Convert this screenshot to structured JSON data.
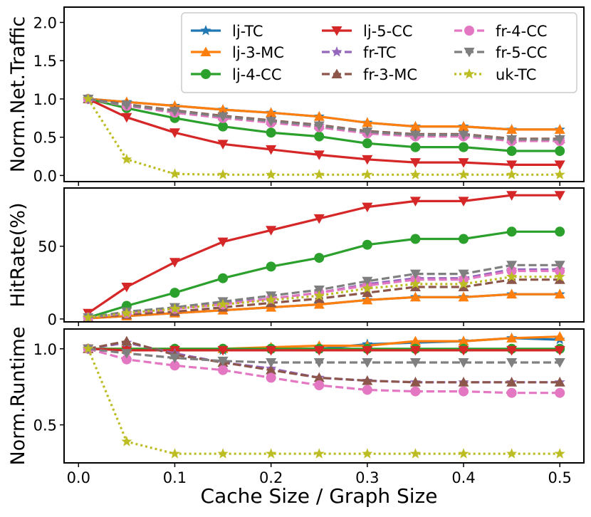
{
  "chart_data": {
    "type": "line",
    "xlabel": "Cache Size / Graph Size",
    "x": [
      0.01,
      0.05,
      0.1,
      0.15,
      0.2,
      0.25,
      0.3,
      0.35,
      0.4,
      0.45,
      0.5
    ],
    "xlim": [
      -0.015,
      0.525
    ],
    "xticks": [
      0.0,
      0.1,
      0.2,
      0.3,
      0.4,
      0.5
    ],
    "xtick_labels": [
      "0.0",
      "0.1",
      "0.2",
      "0.3",
      "0.4",
      "0.5"
    ],
    "legend": {
      "placement": "top-right",
      "entries": [
        "lj-TC",
        "lj-3-MC",
        "lj-4-CC",
        "lj-5-CC",
        "fr-TC",
        "fr-3-MC",
        "fr-4-CC",
        "fr-5-CC",
        "uk-TC"
      ]
    },
    "series_styles": [
      {
        "name": "lj-TC",
        "color": "#1f77b4",
        "marker": "star",
        "dash": "solid"
      },
      {
        "name": "lj-3-MC",
        "color": "#ff7f0e",
        "marker": "triangle-up",
        "dash": "solid"
      },
      {
        "name": "lj-4-CC",
        "color": "#2ca02c",
        "marker": "circle",
        "dash": "solid"
      },
      {
        "name": "lj-5-CC",
        "color": "#d62728",
        "marker": "triangle-down",
        "dash": "solid"
      },
      {
        "name": "fr-TC",
        "color": "#9467bd",
        "marker": "star",
        "dash": "dashed"
      },
      {
        "name": "fr-3-MC",
        "color": "#8c564b",
        "marker": "triangle-up",
        "dash": "dashed"
      },
      {
        "name": "fr-4-CC",
        "color": "#e377c2",
        "marker": "circle",
        "dash": "dashed"
      },
      {
        "name": "fr-5-CC",
        "color": "#7f7f7f",
        "marker": "triangle-down",
        "dash": "dashed"
      },
      {
        "name": "uk-TC",
        "color": "#bcbd22",
        "marker": "star",
        "dash": "dotted"
      }
    ],
    "panels": [
      {
        "ylabel": "Norm.Net.Traffic",
        "ylim": [
          -0.08,
          2.2
        ],
        "yticks": [
          0.0,
          0.5,
          1.0,
          1.5,
          2.0
        ],
        "ytick_labels": [
          "0.0",
          "0.5",
          "1.0",
          "1.5",
          "2.0"
        ],
        "series": [
          {
            "name": "lj-TC",
            "values": [
              1.0,
              0.96,
              0.91,
              0.86,
              0.82,
              0.77,
              0.69,
              0.64,
              0.64,
              0.6,
              0.6
            ]
          },
          {
            "name": "lj-3-MC",
            "values": [
              1.0,
              0.96,
              0.91,
              0.86,
              0.82,
              0.77,
              0.69,
              0.64,
              0.64,
              0.6,
              0.6
            ]
          },
          {
            "name": "lj-4-CC",
            "values": [
              1.0,
              0.88,
              0.75,
              0.64,
              0.56,
              0.51,
              0.42,
              0.37,
              0.37,
              0.32,
              0.32
            ]
          },
          {
            "name": "lj-5-CC",
            "values": [
              1.0,
              0.76,
              0.56,
              0.41,
              0.34,
              0.27,
              0.21,
              0.17,
              0.17,
              0.14,
              0.14
            ]
          },
          {
            "name": "fr-TC",
            "values": [
              1.0,
              0.92,
              0.84,
              0.77,
              0.71,
              0.65,
              0.57,
              0.53,
              0.53,
              0.47,
              0.47
            ]
          },
          {
            "name": "fr-3-MC",
            "values": [
              1.0,
              0.93,
              0.85,
              0.78,
              0.72,
              0.66,
              0.58,
              0.54,
              0.54,
              0.48,
              0.48
            ]
          },
          {
            "name": "fr-4-CC",
            "values": [
              1.0,
              0.91,
              0.82,
              0.75,
              0.69,
              0.63,
              0.55,
              0.51,
              0.51,
              0.45,
              0.45
            ]
          },
          {
            "name": "fr-5-CC",
            "values": [
              1.0,
              0.92,
              0.84,
              0.77,
              0.71,
              0.65,
              0.57,
              0.53,
              0.53,
              0.47,
              0.47
            ]
          },
          {
            "name": "uk-TC",
            "values": [
              1.0,
              0.21,
              0.02,
              0.01,
              0.01,
              0.01,
              0.01,
              0.01,
              0.01,
              0.01,
              0.01
            ]
          }
        ]
      },
      {
        "ylabel": "HitRate(%)",
        "ylim": [
          -2,
          90
        ],
        "yticks": [
          0,
          50
        ],
        "ytick_labels": [
          "0",
          "50"
        ],
        "series": [
          {
            "name": "lj-TC",
            "values": [
              0.5,
              2,
              4,
              6,
              8,
              10,
              13,
              15,
              15,
              17,
              17
            ]
          },
          {
            "name": "lj-3-MC",
            "values": [
              0.5,
              2,
              4,
              6,
              8,
              10,
              13,
              15,
              15,
              17,
              17
            ]
          },
          {
            "name": "lj-4-CC",
            "values": [
              1,
              9,
              18,
              28,
              36,
              42,
              51,
              55,
              55,
              60,
              60
            ]
          },
          {
            "name": "lj-5-CC",
            "values": [
              4,
              22,
              39,
              53,
              61,
              69,
              77,
              81,
              81,
              85,
              85
            ]
          },
          {
            "name": "fr-TC",
            "values": [
              1,
              4,
              7,
              11,
              14,
              18,
              24,
              28,
              28,
              34,
              34
            ]
          },
          {
            "name": "fr-3-MC",
            "values": [
              1,
              3,
              5,
              8,
              11,
              14,
              18,
              22,
              22,
              27,
              27
            ]
          },
          {
            "name": "fr-4-CC",
            "values": [
              1,
              4,
              7,
              10,
              14,
              18,
              23,
              27,
              27,
              33,
              33
            ]
          },
          {
            "name": "fr-5-CC",
            "values": [
              1,
              5,
              8,
              12,
              16,
              20,
              26,
              31,
              31,
              37,
              37
            ]
          },
          {
            "name": "uk-TC",
            "values": [
              1,
              4,
              7,
              10,
              13,
              16,
              21,
              24,
              24,
              29,
              29
            ]
          }
        ]
      },
      {
        "ylabel": "Norm.Runtime",
        "ylim": [
          0.25,
          1.13
        ],
        "yticks": [
          0.5,
          1.0
        ],
        "ytick_labels": [
          "0.5",
          "1.0"
        ],
        "series": [
          {
            "name": "lj-TC",
            "values": [
              1.0,
              0.99,
              0.99,
              0.99,
              1.0,
              1.0,
              1.03,
              1.04,
              1.05,
              1.07,
              1.06
            ]
          },
          {
            "name": "lj-3-MC",
            "values": [
              1.0,
              1.0,
              1.0,
              1.0,
              1.01,
              1.02,
              1.02,
              1.05,
              1.05,
              1.07,
              1.08
            ]
          },
          {
            "name": "lj-4-CC",
            "values": [
              1.0,
              1.0,
              1.0,
              1.0,
              1.0,
              1.0,
              1.0,
              1.0,
              1.0,
              1.0,
              1.0
            ]
          },
          {
            "name": "lj-5-CC",
            "values": [
              1.0,
              0.99,
              0.99,
              0.99,
              0.99,
              0.99,
              0.99,
              0.99,
              0.99,
              0.99,
              0.99
            ]
          },
          {
            "name": "fr-TC",
            "values": [
              1.0,
              1.04,
              0.97,
              0.91,
              0.87,
              0.81,
              0.79,
              0.78,
              0.78,
              0.78,
              0.78
            ]
          },
          {
            "name": "fr-3-MC",
            "values": [
              1.0,
              1.05,
              0.96,
              0.91,
              0.86,
              0.81,
              0.79,
              0.78,
              0.78,
              0.78,
              0.78
            ]
          },
          {
            "name": "fr-4-CC",
            "values": [
              1.0,
              0.93,
              0.89,
              0.86,
              0.81,
              0.76,
              0.73,
              0.72,
              0.72,
              0.71,
              0.71
            ]
          },
          {
            "name": "fr-5-CC",
            "values": [
              1.0,
              0.97,
              0.94,
              0.92,
              0.91,
              0.91,
              0.91,
              0.91,
              0.91,
              0.91,
              0.91
            ]
          },
          {
            "name": "uk-TC",
            "values": [
              1.0,
              0.39,
              0.31,
              0.31,
              0.31,
              0.31,
              0.31,
              0.31,
              0.31,
              0.31,
              0.31
            ]
          }
        ]
      }
    ]
  }
}
